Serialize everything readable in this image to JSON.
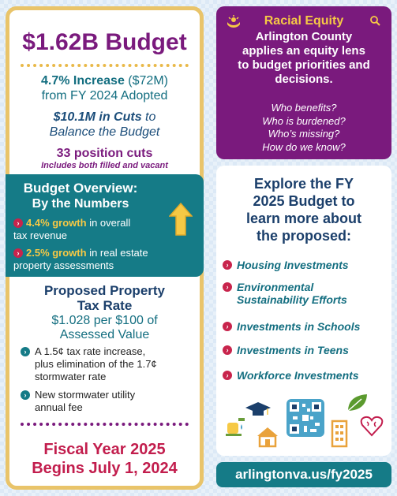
{
  "left": {
    "title": "$1.62B Budget",
    "increase_bold": "4.7% Increase",
    "increase_amount": " ($72M)",
    "increase_line2": "from FY 2024 Adopted",
    "cuts_bold": "$10.1M in Cuts",
    "cuts_rest": " to",
    "cuts_line2": "Balance the Budget",
    "positions": "33 position cuts",
    "positions_note": "Includes both filled and vacant",
    "overview": {
      "title": "Budget Overview:",
      "subtitle": "By the Numbers",
      "items": [
        {
          "bold": "4.4% growth",
          "rest": " in overall",
          "line2": "tax revenue"
        },
        {
          "bold": "2.5% growth",
          "rest": " in real estate",
          "line2": "property assessments"
        }
      ]
    },
    "property": {
      "title1": "Proposed Property",
      "title2": "Tax Rate",
      "rate1": "$1.028 per $100 of",
      "rate2": "Assessed Value",
      "items": [
        {
          "l1": "A 1.5¢ tax rate increase,",
          "l2": "plus elimination of the 1.7¢",
          "l3": "stormwater rate"
        },
        {
          "l1": "New stormwater utility",
          "l2": "annual fee"
        }
      ]
    },
    "fiscal1": "Fiscal Year 2025",
    "fiscal2": "Begins July 1, 2024"
  },
  "equity": {
    "title": "Racial Equity",
    "body": [
      "Arlington County",
      "applies an equity lens",
      "to budget priorities and",
      "decisions."
    ],
    "questions": [
      "Who benefits?",
      "Who is burdened?",
      "Who’s missing?",
      "How do we know?"
    ]
  },
  "explore": {
    "title": [
      "Explore the FY",
      "2025 Budget to",
      "learn more about",
      "the proposed:"
    ],
    "items": [
      {
        "l1": "Housing Investments"
      },
      {
        "l1": "Environmental",
        "l2": "Sustainability Efforts"
      },
      {
        "l1": "Investments in Schools"
      },
      {
        "l1": "Investments in Teens"
      },
      {
        "l1": "Workforce Investments"
      }
    ]
  },
  "url": "arlingtonva.us/fy2025",
  "colors": {
    "purple": "#7a1a7d",
    "teal": "#157b87",
    "gold": "#e9c46a",
    "red": "#c21d4d",
    "navy": "#1b3f6b"
  },
  "icons": [
    "up-arrow-icon",
    "hands-icon",
    "magnifier-icon",
    "water-drop-icon",
    "graduation-cap-icon",
    "house-icon",
    "qr-code-icon",
    "leaf-icon",
    "school-building-icon",
    "brain-heart-icon"
  ]
}
